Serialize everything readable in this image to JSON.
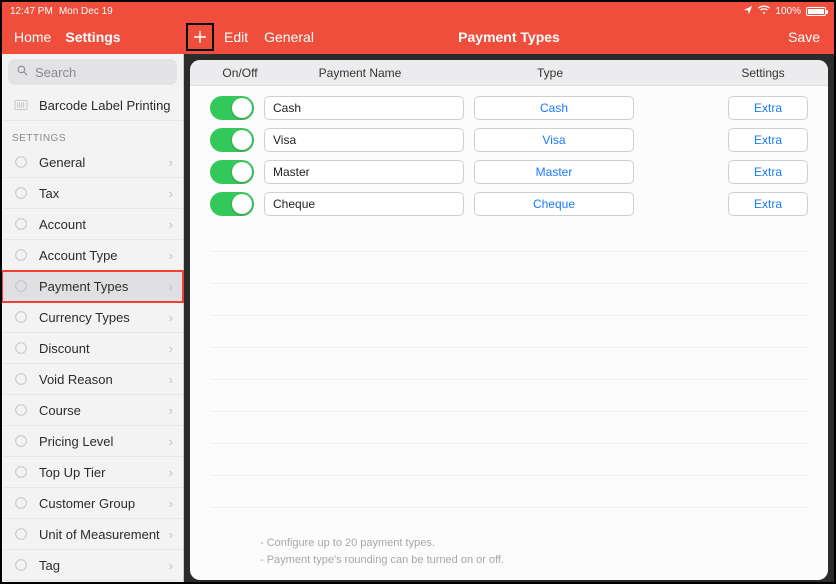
{
  "status": {
    "time": "12:47 PM",
    "date": "Mon Dec 19",
    "battery_pct": "100%"
  },
  "nav": {
    "home": "Home",
    "settings": "Settings",
    "edit": "Edit",
    "general": "General",
    "title": "Payment Types",
    "save": "Save"
  },
  "search": {
    "placeholder": "Search"
  },
  "sidebar": {
    "top_item": "Barcode Label Printing",
    "section": "SETTINGS",
    "items": [
      {
        "label": "General"
      },
      {
        "label": "Tax"
      },
      {
        "label": "Account"
      },
      {
        "label": "Account Type"
      },
      {
        "label": "Payment Types",
        "selected": true
      },
      {
        "label": "Currency Types"
      },
      {
        "label": "Discount"
      },
      {
        "label": "Void Reason"
      },
      {
        "label": "Course"
      },
      {
        "label": "Pricing Level"
      },
      {
        "label": "Top Up Tier"
      },
      {
        "label": "Customer Group"
      },
      {
        "label": "Unit of Measurement"
      },
      {
        "label": "Tag"
      }
    ]
  },
  "table": {
    "head": {
      "onoff": "On/Off",
      "name": "Payment Name",
      "type": "Type",
      "settings": "Settings"
    },
    "rows": [
      {
        "on": true,
        "name": "Cash",
        "type": "Cash",
        "extra": "Extra"
      },
      {
        "on": true,
        "name": "Visa",
        "type": "Visa",
        "extra": "Extra"
      },
      {
        "on": true,
        "name": "Master",
        "type": "Master",
        "extra": "Extra"
      },
      {
        "on": true,
        "name": "Cheque",
        "type": "Cheque",
        "extra": "Extra"
      }
    ],
    "hints": [
      "- Configure up to 20 payment types.",
      "- Payment type's rounding can be turned on or off."
    ]
  },
  "colors": {
    "accent": "#ee4e3b",
    "toggle_on": "#34c759",
    "link_blue": "#1979ff",
    "sidebar_bg": "#f3f3f4",
    "panel_bg": "#fcfcfc"
  }
}
